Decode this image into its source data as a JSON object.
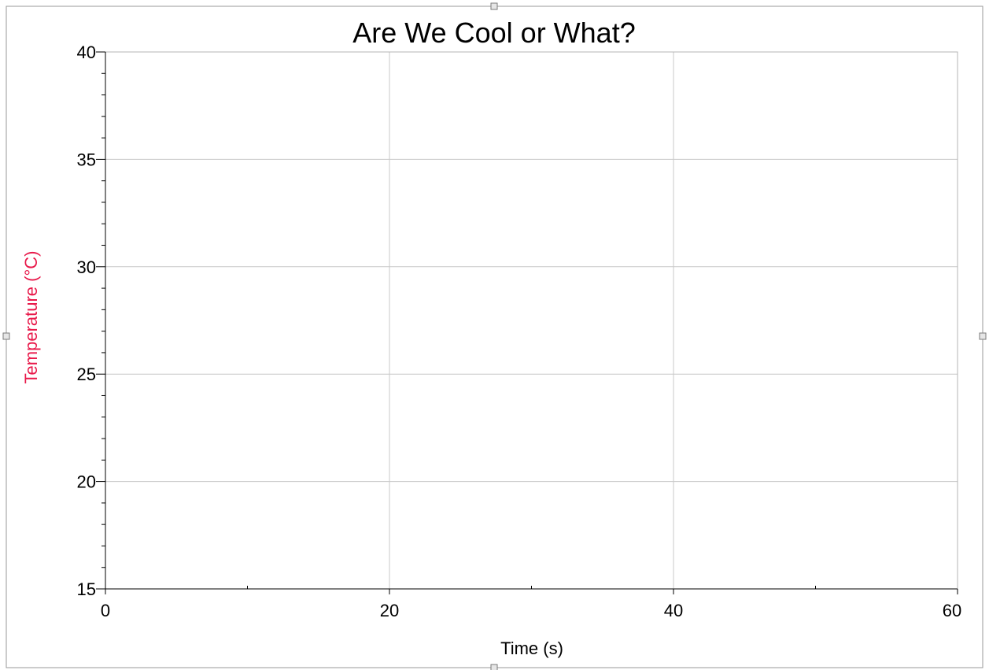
{
  "chart_data": {
    "type": "line",
    "title": "Are We Cool or What?",
    "xlabel": "Time (s)",
    "ylabel": "Temperature (°C)",
    "xlim": [
      0,
      60
    ],
    "ylim": [
      15,
      40
    ],
    "x_major_ticks": [
      0,
      20,
      40,
      60
    ],
    "x_minor_ticks": [
      10,
      30,
      50
    ],
    "y_major_ticks": [
      15,
      20,
      25,
      30,
      35,
      40
    ],
    "y_minor_step": 1,
    "grid": true,
    "series": []
  },
  "colors": {
    "ylabel": "#e8194a",
    "grid": "#c8c8c8",
    "axis": "#000000",
    "frame": "#b4b4b4",
    "border": "#9a9a9a",
    "handle_fill": "#e6e6e6",
    "handle_stroke": "#7a7a7a"
  },
  "icons": {
    "resize_handles": "square-handle-icon"
  }
}
